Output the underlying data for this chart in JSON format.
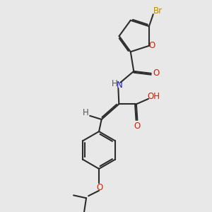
{
  "bg_color": "#e8e8e8",
  "bond_color": "#2d2d2d",
  "bond_width": 1.5,
  "dbo": 0.06,
  "atom_colors": {
    "O": "#cc2200",
    "N": "#1a1acc",
    "Br": "#cc8800",
    "H": "#555555",
    "C": "#2d2d2d"
  },
  "fs": 8.5
}
